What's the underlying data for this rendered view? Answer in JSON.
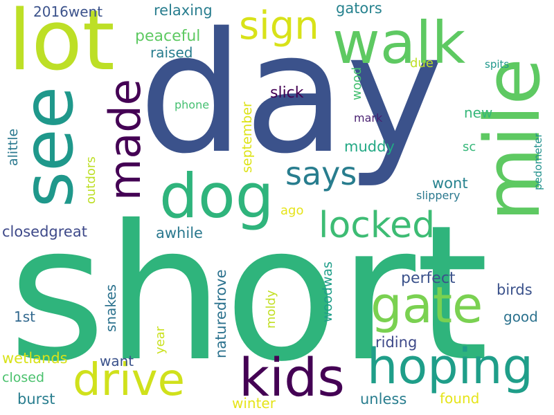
{
  "words": [
    {
      "text": "short",
      "color": "#2fb47c"
    },
    {
      "text": "day",
      "color": "#3b528b"
    },
    {
      "text": "mile",
      "color": "#5ec962"
    },
    {
      "text": "lot",
      "color": "#bddf26"
    },
    {
      "text": "see",
      "color": "#1f988b"
    },
    {
      "text": "walk",
      "color": "#5ec962"
    },
    {
      "text": "dog",
      "color": "#2fb47c"
    },
    {
      "text": "sign",
      "color": "#d8e219"
    },
    {
      "text": "made",
      "color": "#440154"
    },
    {
      "text": "gate",
      "color": "#7ad151"
    },
    {
      "text": "kids",
      "color": "#440154"
    },
    {
      "text": "hoping",
      "color": "#1f9e89"
    },
    {
      "text": "drive",
      "color": "#d0e11c"
    },
    {
      "text": "locked",
      "color": "#3dbc74"
    },
    {
      "text": "says",
      "color": "#287d8e"
    },
    {
      "text": "2016went",
      "color": "#3b528b"
    },
    {
      "text": "relaxing",
      "color": "#287d8e"
    },
    {
      "text": "gators",
      "color": "#26828e"
    },
    {
      "text": "peaceful",
      "color": "#5ec962"
    },
    {
      "text": "raised",
      "color": "#287d8e"
    },
    {
      "text": "wood",
      "color": "#44bf70"
    },
    {
      "text": "due",
      "color": "#bddf26"
    },
    {
      "text": "spits",
      "color": "#1f988b"
    },
    {
      "text": "slick",
      "color": "#440154"
    },
    {
      "text": "phone",
      "color": "#44bf70"
    },
    {
      "text": "new",
      "color": "#35b779"
    },
    {
      "text": "mark",
      "color": "#481f70"
    },
    {
      "text": "september",
      "color": "#dde318"
    },
    {
      "text": "alittle",
      "color": "#2a788e"
    },
    {
      "text": "outdors",
      "color": "#bddf26"
    },
    {
      "text": "muddy",
      "color": "#22a884"
    },
    {
      "text": "sc",
      "color": "#35b779"
    },
    {
      "text": "pedometer",
      "color": "#21918c"
    },
    {
      "text": "wont",
      "color": "#26828e"
    },
    {
      "text": "slippery",
      "color": "#2a788e"
    },
    {
      "text": "ago",
      "color": "#e5e419"
    },
    {
      "text": "closedgreat",
      "color": "#3e4989"
    },
    {
      "text": "awhile",
      "color": "#2a788e"
    },
    {
      "text": "naturedrove",
      "color": "#2c728e"
    },
    {
      "text": "woodwas",
      "color": "#1f9e89"
    },
    {
      "text": "perfect",
      "color": "#3b528b"
    },
    {
      "text": "birds",
      "color": "#3b528b"
    },
    {
      "text": "snakes",
      "color": "#2c728e"
    },
    {
      "text": "moldy",
      "color": "#c2df23"
    },
    {
      "text": "1st",
      "color": "#31688e"
    },
    {
      "text": "good",
      "color": "#2c728e"
    },
    {
      "text": "year",
      "color": "#cae11f"
    },
    {
      "text": "riding",
      "color": "#3e4989"
    },
    {
      "text": "wetlands",
      "color": "#d8e219"
    },
    {
      "text": "want",
      "color": "#3b528b"
    },
    {
      "text": "closed",
      "color": "#4ac16d"
    },
    {
      "text": "burst",
      "color": "#287d8e"
    },
    {
      "text": "winter",
      "color": "#e5e419"
    },
    {
      "text": "unless",
      "color": "#287d8e"
    },
    {
      "text": "found",
      "color": "#e5e419"
    }
  ]
}
